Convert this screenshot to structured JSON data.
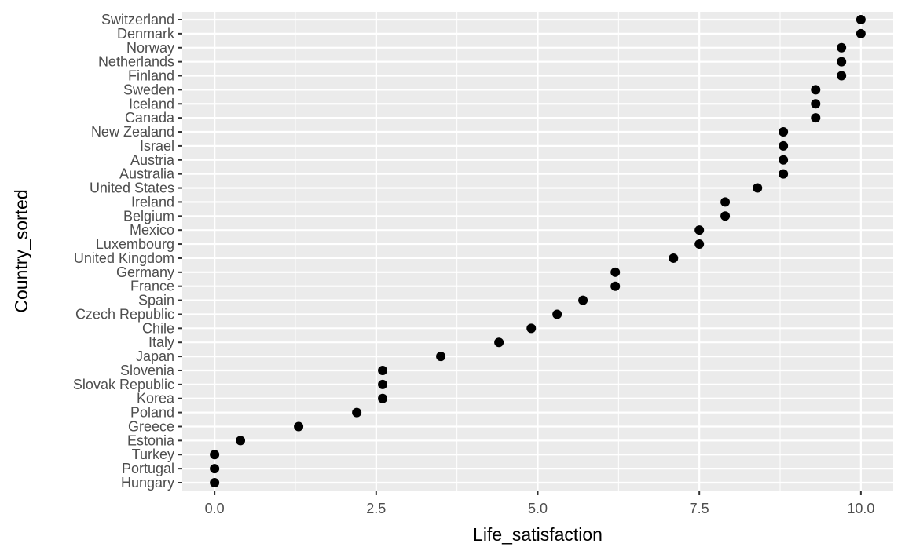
{
  "chart_data": {
    "type": "scatter",
    "xlabel": "Life_satisfaction",
    "ylabel": "Country_sorted",
    "xlim": [
      -0.5,
      10.5
    ],
    "x_ticks": [
      "0.0",
      "2.5",
      "5.0",
      "7.5",
      "10.0"
    ],
    "x_tick_values": [
      0,
      2.5,
      5,
      7.5,
      10
    ],
    "grid": true,
    "panel_background": "#EBEBEB",
    "point_color": "#000000",
    "categories": [
      "Switzerland",
      "Denmark",
      "Norway",
      "Netherlands",
      "Finland",
      "Sweden",
      "Iceland",
      "Canada",
      "New Zealand",
      "Israel",
      "Austria",
      "Australia",
      "United States",
      "Ireland",
      "Belgium",
      "Mexico",
      "Luxembourg",
      "United Kingdom",
      "Germany",
      "France",
      "Spain",
      "Czech Republic",
      "Chile",
      "Italy",
      "Japan",
      "Slovenia",
      "Slovak Republic",
      "Korea",
      "Poland",
      "Greece",
      "Estonia",
      "Turkey",
      "Portugal",
      "Hungary"
    ],
    "values": [
      10.0,
      10.0,
      9.7,
      9.7,
      9.7,
      9.3,
      9.3,
      9.3,
      8.8,
      8.8,
      8.8,
      8.8,
      8.4,
      7.9,
      7.9,
      7.5,
      7.5,
      7.1,
      6.2,
      6.2,
      5.7,
      5.3,
      4.9,
      4.4,
      3.5,
      2.6,
      2.6,
      2.6,
      2.2,
      1.3,
      0.4,
      0.0,
      0.0,
      0.0
    ]
  }
}
